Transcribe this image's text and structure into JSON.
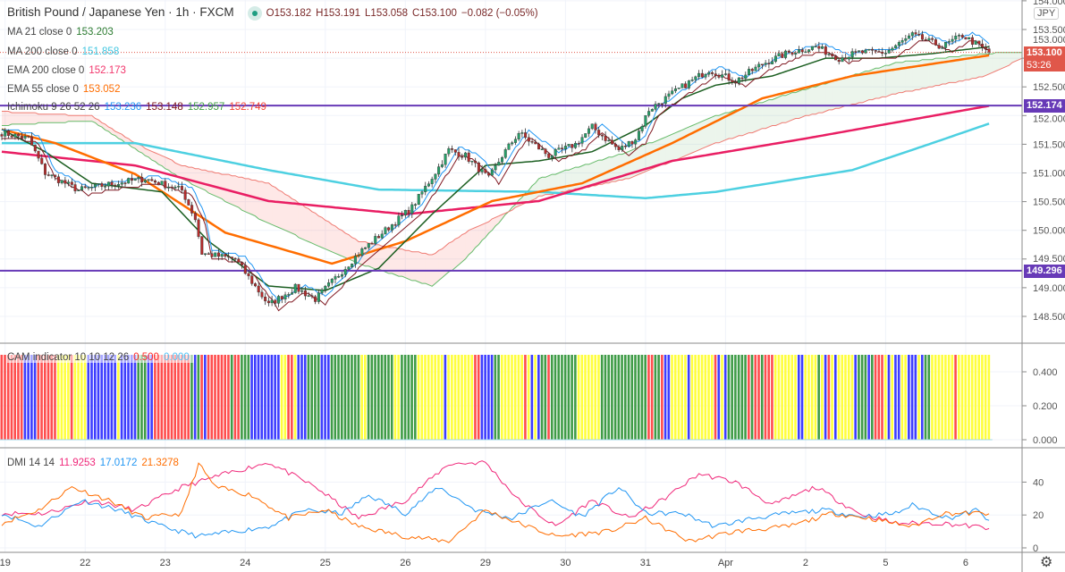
{
  "header": {
    "symbol": "British Pound / Japanese Yen · 1h · FXCM",
    "open": "O153.182",
    "high": "H153.191",
    "low": "L153.058",
    "close": "C153.100",
    "change": "−0.082 (−0.05%)"
  },
  "legends": {
    "ma21": {
      "label": "MA 21 close 0",
      "value": "153.203",
      "color": "#2e7d32"
    },
    "ma200": {
      "label": "MA 200 close 0",
      "value": "151.858",
      "color": "#3ec5e0"
    },
    "ema200": {
      "label": "EMA 200 close 0",
      "value": "152.173",
      "color": "#f2366c"
    },
    "ema55": {
      "label": "EMA 55 close 0",
      "value": "153.052",
      "color": "#ff6d00"
    },
    "ichimoku": {
      "label": "Ichimoku 9 26 52 26",
      "conversion": "153.236",
      "base": "153.148",
      "span_a": "152.957",
      "span_b": "152.749"
    }
  },
  "price_axis": {
    "currency": "JPY",
    "last_price": "153.100",
    "countdown": "53:26",
    "hline_upper": "152.174",
    "hline_lower": "149.296"
  },
  "cam": {
    "label": "CAM indicator 10 10 12 26",
    "value1": "0.500",
    "value2": "0.000"
  },
  "dmi": {
    "label": "DMI 14 14",
    "value1": "11.9253",
    "value2": "17.0172",
    "value3": "21.3278"
  },
  "colors": {
    "up": "#26a069",
    "down": "#b52c2c",
    "hline": "#673ab7",
    "last": "#e0574a"
  },
  "chart_data": [
    {
      "type": "candlestick",
      "title": "British Pound / Japanese Yen · 1h · FXCM",
      "ylim": [
        148.0,
        154.0
      ],
      "yticks": [
        "148.500",
        "149.000",
        "149.500",
        "150.000",
        "150.500",
        "151.000",
        "151.500",
        "152.000",
        "152.500",
        "153.000",
        "153.500",
        "154.000"
      ],
      "xticks": [
        "19",
        "22",
        "23",
        "24",
        "25",
        "26",
        "29",
        "30",
        "31",
        "Apr",
        "2",
        "5",
        "6"
      ],
      "bars_per_day": 24,
      "bar_count": 297,
      "close_path": [
        [
          0,
          151.7
        ],
        [
          8,
          151.6
        ],
        [
          13,
          151.0
        ],
        [
          23,
          150.7
        ],
        [
          32,
          150.8
        ],
        [
          43,
          150.9
        ],
        [
          54,
          150.7
        ],
        [
          58,
          150.2
        ],
        [
          60,
          149.6
        ],
        [
          70,
          149.5
        ],
        [
          75,
          149.1
        ],
        [
          80,
          148.7
        ],
        [
          88,
          149.0
        ],
        [
          94,
          148.8
        ],
        [
          99,
          149.1
        ],
        [
          107,
          149.6
        ],
        [
          115,
          150.0
        ],
        [
          123,
          150.4
        ],
        [
          131,
          151.1
        ],
        [
          134,
          151.4
        ],
        [
          139,
          151.3
        ],
        [
          146,
          150.9
        ],
        [
          150,
          151.3
        ],
        [
          155,
          151.7
        ],
        [
          164,
          151.3
        ],
        [
          172,
          151.5
        ],
        [
          177,
          151.8
        ],
        [
          185,
          151.4
        ],
        [
          190,
          151.6
        ],
        [
          194,
          152.1
        ],
        [
          204,
          152.5
        ],
        [
          212,
          152.8
        ],
        [
          220,
          152.6
        ],
        [
          228,
          152.9
        ],
        [
          236,
          153.1
        ],
        [
          244,
          153.2
        ],
        [
          251,
          153.0
        ],
        [
          257,
          153.1
        ],
        [
          265,
          153.1
        ],
        [
          273,
          153.4
        ],
        [
          282,
          153.2
        ],
        [
          288,
          153.4
        ],
        [
          296,
          153.1
        ]
      ],
      "horizontal_lines": [
        152.174,
        149.296
      ],
      "last_price": 153.1,
      "series": [
        {
          "name": "MA 200",
          "color": "#4dd0e1",
          "points": [
            [
              0,
              151.52
            ],
            [
              40,
              151.52
            ],
            [
              80,
              151.05
            ],
            [
              113,
              150.71
            ],
            [
              161,
              150.67
            ],
            [
              193,
              150.56
            ],
            [
              214,
              150.67
            ],
            [
              255,
              151.05
            ],
            [
              279,
              151.52
            ],
            [
              296,
              151.86
            ]
          ]
        },
        {
          "name": "EMA 200",
          "color": "#e91e63",
          "points": [
            [
              0,
              151.37
            ],
            [
              40,
              151.13
            ],
            [
              80,
              150.51
            ],
            [
              121,
              150.28
            ],
            [
              161,
              150.51
            ],
            [
              201,
              151.21
            ],
            [
              241,
              151.6
            ],
            [
              296,
              152.17
            ]
          ]
        },
        {
          "name": "EMA 55",
          "color": "#ff6d00",
          "points": [
            [
              0,
              151.76
            ],
            [
              16,
              151.52
            ],
            [
              40,
              150.98
            ],
            [
              67,
              149.96
            ],
            [
              99,
              149.42
            ],
            [
              121,
              149.81
            ],
            [
              147,
              150.51
            ],
            [
              174,
              150.82
            ],
            [
              201,
              151.52
            ],
            [
              228,
              152.3
            ],
            [
              255,
              152.69
            ],
            [
              296,
              153.05
            ]
          ]
        },
        {
          "name": "MA 21",
          "color": "#1b5e20",
          "points": [
            [
              0,
              151.76
            ],
            [
              13,
              151.37
            ],
            [
              27,
              150.82
            ],
            [
              48,
              150.67
            ],
            [
              62,
              149.81
            ],
            [
              80,
              149.03
            ],
            [
              97,
              148.95
            ],
            [
              113,
              149.34
            ],
            [
              129,
              150.28
            ],
            [
              145,
              151.13
            ],
            [
              161,
              151.21
            ],
            [
              177,
              151.37
            ],
            [
              193,
              151.83
            ],
            [
              204,
              152.3
            ],
            [
              214,
              152.53
            ],
            [
              231,
              152.69
            ],
            [
              247,
              153.0
            ],
            [
              263,
              153.0
            ],
            [
              279,
              153.08
            ],
            [
              296,
              153.2
            ]
          ]
        }
      ],
      "ichimoku": {
        "span_a": [
          [
            0,
            151.83
          ],
          [
            27,
            151.91
          ],
          [
            54,
            150.9
          ],
          [
            80,
            150.12
          ],
          [
            107,
            149.42
          ],
          [
            129,
            149.03
          ],
          [
            139,
            149.5
          ],
          [
            161,
            150.9
          ],
          [
            188,
            151.37
          ],
          [
            214,
            151.99
          ],
          [
            241,
            152.46
          ],
          [
            268,
            152.92
          ],
          [
            295,
            153.08
          ],
          [
            306,
            153.11
          ]
        ],
        "span_b": [
          [
            0,
            152.07
          ],
          [
            27,
            151.99
          ],
          [
            40,
            151.52
          ],
          [
            54,
            151.13
          ],
          [
            80,
            150.82
          ],
          [
            107,
            149.81
          ],
          [
            129,
            149.57
          ],
          [
            139,
            149.96
          ],
          [
            161,
            150.59
          ],
          [
            188,
            150.9
          ],
          [
            214,
            151.52
          ],
          [
            241,
            151.99
          ],
          [
            268,
            152.38
          ],
          [
            295,
            152.69
          ],
          [
            306,
            153.0
          ]
        ]
      }
    },
    {
      "type": "bar",
      "title": "CAM indicator 10 10 12 26",
      "ylim": [
        0,
        0.55
      ],
      "yticks": [
        "0.000",
        "0.200",
        "0.400"
      ],
      "value": 0.5,
      "color_key": {
        "R": "#ff4d4d",
        "B": "#3d3dff",
        "Y": "#ffff3c",
        "G": "#3f9c47"
      },
      "bar_colors": "RRRRRRRBBBBRRRRRRYYYYRYYYYBBBBBBBBBYBBBBBGGGBBRRRRRRRRRRRGBGRBRRRRRRRGRRGGGBBBBBBBBBYYRRYBBBGGGGBBBGGGGGGGGGYYGGGGGGGGYYGGGGGYYYYYYYYBYYYYYYYYRRBBBBGGYYYYYYYRYBYBGGRGGGGGGGGYYYYYYYGGGGGGGGGGGGGGRRGGRBBYYYYYBYYYYYYYRBYBGGGGGGRGRRGRRRYYYYYYYBBYYYYGYBRYBYYYYYBGGGBGRRRYBYBBYYBBBYBGGYYYYYYYR"
    },
    {
      "type": "line",
      "title": "DMI 14 14",
      "ylim": [
        0,
        58
      ],
      "yticks": [
        "0",
        "20",
        "40"
      ],
      "series": [
        {
          "name": "ADX",
          "color": "#f0287a",
          "points": [
            [
              0,
              21
            ],
            [
              13,
              21
            ],
            [
              27,
              29
            ],
            [
              40,
              23
            ],
            [
              54,
              37
            ],
            [
              67,
              45
            ],
            [
              80,
              52
            ],
            [
              94,
              37
            ],
            [
              107,
              18
            ],
            [
              121,
              29
            ],
            [
              134,
              51
            ],
            [
              145,
              52
            ],
            [
              155,
              29
            ],
            [
              166,
              13
            ],
            [
              177,
              29
            ],
            [
              188,
              18
            ],
            [
              198,
              29
            ],
            [
              209,
              45
            ],
            [
              220,
              40
            ],
            [
              231,
              26
            ],
            [
              244,
              37
            ],
            [
              257,
              21
            ],
            [
              268,
              15
            ],
            [
              282,
              15
            ],
            [
              296,
              12
            ]
          ]
        },
        {
          "name": "+DI",
          "color": "#2196f3",
          "points": [
            [
              0,
              21
            ],
            [
              11,
              13
            ],
            [
              24,
              29
            ],
            [
              35,
              23
            ],
            [
              48,
              13
            ],
            [
              59,
              7
            ],
            [
              70,
              10
            ],
            [
              80,
              13
            ],
            [
              91,
              23
            ],
            [
              102,
              21
            ],
            [
              110,
              32
            ],
            [
              121,
              21
            ],
            [
              131,
              37
            ],
            [
              142,
              23
            ],
            [
              153,
              18
            ],
            [
              164,
              29
            ],
            [
              174,
              19
            ],
            [
              185,
              37
            ],
            [
              193,
              21
            ],
            [
              204,
              21
            ],
            [
              214,
              13
            ],
            [
              225,
              18
            ],
            [
              236,
              21
            ],
            [
              247,
              23
            ],
            [
              257,
              19
            ],
            [
              268,
              21
            ],
            [
              273,
              26
            ],
            [
              284,
              18
            ],
            [
              292,
              23
            ],
            [
              296,
              17
            ]
          ]
        },
        {
          "name": "-DI",
          "color": "#ff6d00",
          "points": [
            [
              0,
              15
            ],
            [
              11,
              23
            ],
            [
              21,
              37
            ],
            [
              32,
              29
            ],
            [
              43,
              18
            ],
            [
              54,
              21
            ],
            [
              59,
              51
            ],
            [
              64,
              37
            ],
            [
              75,
              32
            ],
            [
              86,
              18
            ],
            [
              97,
              23
            ],
            [
              107,
              13
            ],
            [
              121,
              7
            ],
            [
              134,
              4
            ],
            [
              145,
              23
            ],
            [
              155,
              15
            ],
            [
              166,
              7
            ],
            [
              182,
              10
            ],
            [
              193,
              18
            ],
            [
              206,
              4
            ],
            [
              220,
              10
            ],
            [
              236,
              13
            ],
            [
              249,
              21
            ],
            [
              260,
              18
            ],
            [
              273,
              13
            ],
            [
              282,
              21
            ],
            [
              296,
              21
            ]
          ]
        }
      ]
    }
  ]
}
